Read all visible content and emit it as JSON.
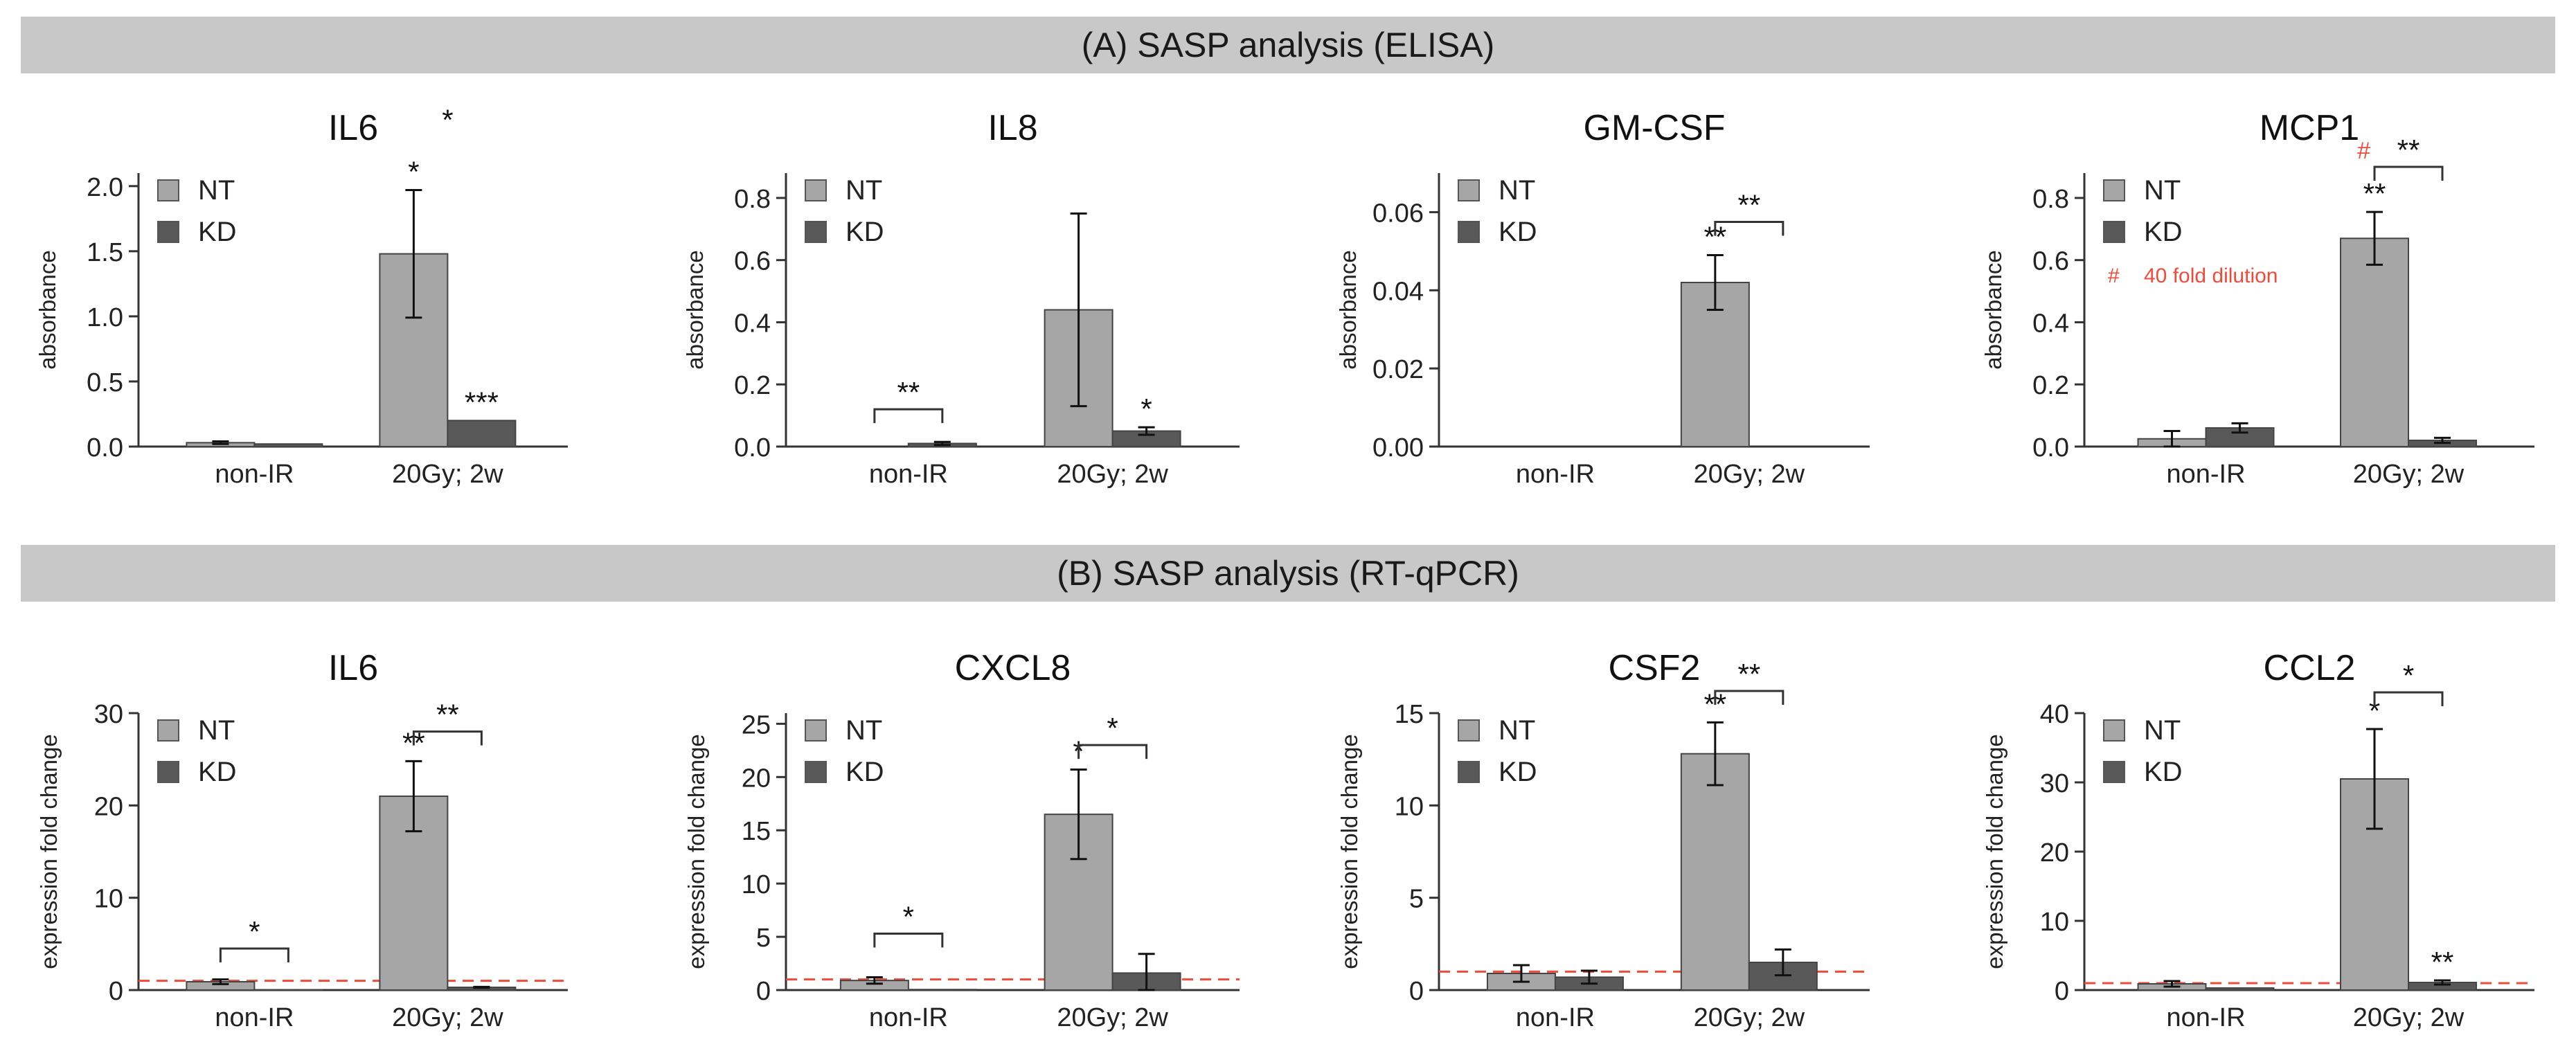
{
  "sections": {
    "a_title": "(A) SASP analysis (ELISA)",
    "b_title": "(B) SASP analysis (RT-qPCR)"
  },
  "colors": {
    "nt": "#a6a6a6",
    "kd": "#595959",
    "banner": "#c8c8c8",
    "red": "#ee4b3b"
  },
  "chart_data": [
    {
      "type": "bar",
      "title": "IL6",
      "ylabel": "absorbance",
      "categories": [
        "non-IR",
        "20Gy; 2w"
      ],
      "ylim": [
        0,
        2.1
      ],
      "yticks": [
        "0.0",
        "0.5",
        "1.0",
        "1.5",
        "2.0"
      ],
      "legend": [
        "NT",
        "KD"
      ],
      "series": [
        {
          "name": "NT",
          "values": [
            0.03,
            1.48
          ],
          "errors": [
            0.01,
            0.49
          ]
        },
        {
          "name": "KD",
          "values": [
            0.02,
            0.2
          ],
          "errors": [
            0,
            0
          ]
        }
      ],
      "annotations": [
        {
          "cat": 1,
          "bar": 0,
          "text": "*"
        },
        {
          "cat": 1,
          "bar": 1,
          "text": "***"
        },
        {
          "cat": 1,
          "bracket": true,
          "text": "*",
          "bracket_y": 2.38,
          "no_line": true
        }
      ]
    },
    {
      "type": "bar",
      "title": "IL8",
      "ylabel": "absorbance",
      "categories": [
        "non-IR",
        "20Gy; 2w"
      ],
      "ylim": [
        0,
        0.88
      ],
      "yticks": [
        "0.0",
        "0.2",
        "0.4",
        "0.6",
        "0.8"
      ],
      "legend": [
        "NT",
        "KD"
      ],
      "series": [
        {
          "name": "NT",
          "values": [
            0.0,
            0.44
          ],
          "errors": [
            0,
            0.31
          ]
        },
        {
          "name": "KD",
          "values": [
            0.01,
            0.05
          ],
          "errors": [
            0.005,
            0.012
          ]
        }
      ],
      "annotations": [
        {
          "cat": 1,
          "bar": 1,
          "text": "*"
        },
        {
          "cat": 0,
          "bracket": true,
          "text": "**",
          "bracket_y": 0.12
        }
      ]
    },
    {
      "type": "bar",
      "title": "GM-CSF",
      "ylabel": "absorbance",
      "categories": [
        "non-IR",
        "20Gy; 2w"
      ],
      "ylim": [
        0,
        0.07
      ],
      "yticks": [
        "0.00",
        "0.02",
        "0.04",
        "0.06"
      ],
      "legend": [
        "NT",
        "KD"
      ],
      "series": [
        {
          "name": "NT",
          "values": [
            0.0,
            0.042
          ],
          "errors": [
            0,
            0.007
          ]
        },
        {
          "name": "KD",
          "values": [
            0.0,
            0.0
          ],
          "errors": [
            0,
            0
          ]
        }
      ],
      "annotations": [
        {
          "cat": 1,
          "bar": 0,
          "text": "**"
        },
        {
          "cat": 1,
          "bracket": true,
          "text": "**",
          "bracket_y": 0.0575
        }
      ]
    },
    {
      "type": "bar",
      "title": "MCP1",
      "ylabel": "absorbance",
      "categories": [
        "non-IR",
        "20Gy; 2w"
      ],
      "ylim": [
        0,
        0.88
      ],
      "yticks": [
        "0.0",
        "0.2",
        "0.4",
        "0.6",
        "0.8"
      ],
      "legend": [
        "NT",
        "KD"
      ],
      "series": [
        {
          "name": "NT",
          "values": [
            0.025,
            0.67
          ],
          "errors": [
            0.025,
            0.085
          ]
        },
        {
          "name": "KD",
          "values": [
            0.06,
            0.02
          ],
          "errors": [
            0.015,
            0.008
          ]
        }
      ],
      "annotations": [
        {
          "cat": 1,
          "bar": 0,
          "text": "**"
        },
        {
          "cat": 1,
          "bracket": true,
          "text": "**",
          "bracket_y": 0.9,
          "prefix": "#"
        }
      ],
      "note": {
        "symbol": "#",
        "text": "40 fold dilution"
      }
    },
    {
      "type": "bar",
      "title": "IL6",
      "ylabel": "expression fold change",
      "categories": [
        "non-IR",
        "20Gy; 2w"
      ],
      "ylim": [
        0,
        30
      ],
      "yticks": [
        "0",
        "10",
        "20",
        "30"
      ],
      "legend": [
        "NT",
        "KD"
      ],
      "reference_line": 1,
      "series": [
        {
          "name": "NT",
          "values": [
            0.9,
            21
          ],
          "errors": [
            0.25,
            3.8
          ]
        },
        {
          "name": "KD",
          "values": [
            0.02,
            0.3
          ],
          "errors": [
            0,
            0.05
          ]
        }
      ],
      "annotations": [
        {
          "cat": 1,
          "bar": 0,
          "text": "**"
        },
        {
          "cat": 0,
          "bracket": true,
          "text": "*",
          "bracket_y": 4.5
        },
        {
          "cat": 1,
          "bracket": true,
          "text": "**",
          "bracket_y": 28
        }
      ]
    },
    {
      "type": "bar",
      "title": "CXCL8",
      "ylabel": "expression fold change",
      "categories": [
        "non-IR",
        "20Gy; 2w"
      ],
      "ylim": [
        0,
        26
      ],
      "yticks": [
        "0",
        "5",
        "10",
        "15",
        "20",
        "25"
      ],
      "legend": [
        "NT",
        "KD"
      ],
      "reference_line": 1,
      "series": [
        {
          "name": "NT",
          "values": [
            0.9,
            16.5
          ],
          "errors": [
            0.3,
            4.2
          ]
        },
        {
          "name": "KD",
          "values": [
            0.05,
            1.6
          ],
          "errors": [
            0,
            1.8
          ]
        }
      ],
      "annotations": [
        {
          "cat": 1,
          "bar": 0,
          "text": "*"
        },
        {
          "cat": 0,
          "bracket": true,
          "text": "*",
          "bracket_y": 5.3
        },
        {
          "cat": 1,
          "bracket": true,
          "text": "*",
          "bracket_y": 23
        }
      ]
    },
    {
      "type": "bar",
      "title": "CSF2",
      "ylabel": "expression fold change",
      "categories": [
        "non-IR",
        "20Gy; 2w"
      ],
      "ylim": [
        0,
        15
      ],
      "yticks": [
        "0",
        "5",
        "10",
        "15"
      ],
      "legend": [
        "NT",
        "KD"
      ],
      "reference_line": 1,
      "series": [
        {
          "name": "NT",
          "values": [
            0.9,
            12.8
          ],
          "errors": [
            0.45,
            1.7
          ]
        },
        {
          "name": "KD",
          "values": [
            0.7,
            1.5
          ],
          "errors": [
            0.35,
            0.7
          ]
        }
      ],
      "annotations": [
        {
          "cat": 1,
          "bar": 0,
          "text": "**"
        },
        {
          "cat": 1,
          "bracket": true,
          "text": "**",
          "bracket_y": 16.2
        }
      ]
    },
    {
      "type": "bar",
      "title": "CCL2",
      "ylabel": "expression fold change",
      "categories": [
        "non-IR",
        "20Gy; 2w"
      ],
      "ylim": [
        0,
        40
      ],
      "yticks": [
        "0",
        "10",
        "20",
        "30",
        "40"
      ],
      "legend": [
        "NT",
        "KD"
      ],
      "reference_line": 1,
      "series": [
        {
          "name": "NT",
          "values": [
            0.9,
            30.5
          ],
          "errors": [
            0.4,
            7.2
          ]
        },
        {
          "name": "KD",
          "values": [
            0.3,
            1.1
          ],
          "errors": [
            0,
            0.3
          ]
        }
      ],
      "annotations": [
        {
          "cat": 1,
          "bar": 0,
          "text": "*"
        },
        {
          "cat": 1,
          "bar": 1,
          "text": "**"
        },
        {
          "cat": 1,
          "bracket": true,
          "text": "*",
          "bracket_y": 43
        }
      ]
    }
  ]
}
